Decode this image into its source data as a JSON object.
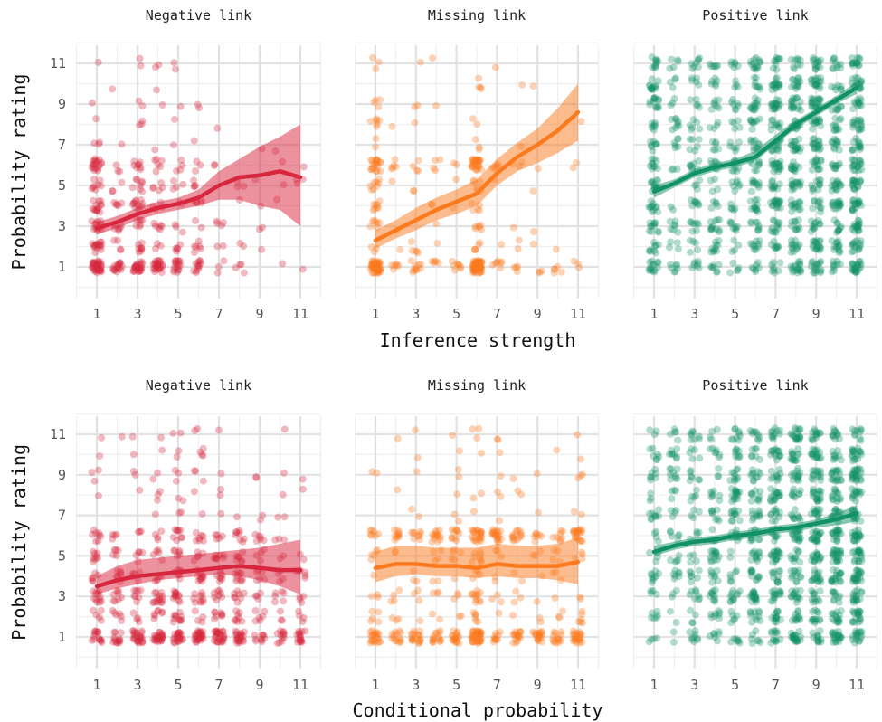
{
  "colors": {
    "negative": "#d7263d",
    "missing": "#fc7a1e",
    "positive": "#119166"
  },
  "chart_data": [
    {
      "type": "scatter",
      "title": "",
      "xlabel": "Inference strength",
      "ylabel": "Probability rating",
      "xlim": [
        0,
        12
      ],
      "ylim": [
        0,
        12.6
      ],
      "xticks": [
        "1",
        "3",
        "5",
        "7",
        "9",
        "11"
      ],
      "yticks": [
        "1",
        "3",
        "5",
        "7",
        "9",
        "11"
      ],
      "grid": true,
      "panels": [
        {
          "strip": "Negative link",
          "color_key": "negative",
          "trend_x": [
            1,
            2,
            3,
            4,
            5,
            6,
            7,
            8,
            9,
            10,
            11
          ],
          "trend_y": [
            2.9,
            3.2,
            3.6,
            3.9,
            4.1,
            4.4,
            5.0,
            5.4,
            5.5,
            5.7,
            5.4
          ],
          "band_low": [
            2.6,
            2.9,
            3.3,
            3.6,
            3.8,
            4.0,
            4.3,
            4.3,
            4.0,
            3.8,
            3.0
          ],
          "band_high": [
            3.2,
            3.5,
            3.9,
            4.2,
            4.4,
            4.8,
            5.7,
            6.3,
            6.9,
            7.4,
            8.0
          ],
          "density": [
            110,
            40,
            75,
            55,
            40,
            35,
            12,
            10,
            6,
            5,
            5
          ],
          "ymode": "neg"
        },
        {
          "strip": "Missing link",
          "color_key": "missing",
          "trend_x": [
            1,
            2,
            3,
            4,
            5,
            6,
            7,
            8,
            9,
            10,
            11
          ],
          "trend_y": [
            2.3,
            2.8,
            3.3,
            3.8,
            4.2,
            4.6,
            5.6,
            6.4,
            7.0,
            7.7,
            8.6
          ],
          "band_low": [
            1.9,
            2.4,
            2.8,
            3.3,
            3.6,
            4.0,
            5.0,
            5.7,
            6.1,
            6.6,
            7.2
          ],
          "band_high": [
            2.8,
            3.3,
            3.9,
            4.4,
            4.8,
            5.3,
            6.3,
            7.1,
            7.8,
            8.8,
            10.0
          ],
          "density": [
            110,
            15,
            25,
            15,
            12,
            110,
            15,
            12,
            8,
            6,
            6
          ],
          "ymode": "mis"
        },
        {
          "strip": "Positive link",
          "color_key": "positive",
          "trend_x": [
            1,
            2,
            3,
            4,
            5,
            6,
            7,
            8,
            9,
            10,
            11
          ],
          "trend_y": [
            4.7,
            5.1,
            5.6,
            5.9,
            6.1,
            6.4,
            7.2,
            8.0,
            8.6,
            9.2,
            9.8
          ],
          "band_low": [
            4.4,
            4.9,
            5.4,
            5.7,
            5.9,
            6.2,
            7.0,
            7.8,
            8.4,
            9.0,
            9.5
          ],
          "band_high": [
            5.0,
            5.3,
            5.8,
            6.1,
            6.3,
            6.7,
            7.5,
            8.2,
            8.8,
            9.4,
            10.1
          ],
          "density": [
            120,
            50,
            70,
            75,
            65,
            110,
            140,
            150,
            160,
            120,
            180
          ],
          "ymode": "pos"
        }
      ]
    },
    {
      "type": "scatter",
      "title": "",
      "xlabel": "Conditional probability",
      "ylabel": "Probability rating",
      "xlim": [
        0,
        12
      ],
      "ylim": [
        0,
        12.6
      ],
      "xticks": [
        "1",
        "3",
        "5",
        "7",
        "9",
        "11"
      ],
      "yticks": [
        "1",
        "3",
        "5",
        "7",
        "9",
        "11"
      ],
      "grid": true,
      "panels": [
        {
          "strip": "Negative link",
          "color_key": "negative",
          "trend_x": [
            1,
            2,
            3,
            4,
            5,
            6,
            7,
            8,
            9,
            10,
            11
          ],
          "trend_y": [
            3.5,
            3.8,
            4.0,
            4.1,
            4.2,
            4.3,
            4.4,
            4.5,
            4.4,
            4.3,
            4.3
          ],
          "band_low": [
            3.1,
            3.4,
            3.6,
            3.8,
            3.9,
            4.0,
            4.1,
            4.0,
            3.8,
            3.5,
            3.1
          ],
          "band_high": [
            4.0,
            4.5,
            4.8,
            4.9,
            5.0,
            5.1,
            5.2,
            5.3,
            5.4,
            5.6,
            5.8
          ],
          "density": [
            60,
            45,
            55,
            70,
            80,
            75,
            70,
            65,
            40,
            35,
            35
          ],
          "ymode": "neg"
        },
        {
          "strip": "Missing link",
          "color_key": "missing",
          "trend_x": [
            1,
            2,
            3,
            4,
            5,
            6,
            7,
            8,
            9,
            10,
            11
          ],
          "trend_y": [
            4.4,
            4.6,
            4.6,
            4.5,
            4.5,
            4.4,
            4.6,
            4.5,
            4.5,
            4.5,
            4.7
          ],
          "band_low": [
            3.7,
            4.0,
            4.1,
            4.0,
            4.0,
            3.9,
            4.0,
            3.9,
            3.9,
            3.8,
            3.6
          ],
          "band_high": [
            5.2,
            5.5,
            5.5,
            5.4,
            5.4,
            5.4,
            5.6,
            5.5,
            5.5,
            5.6,
            5.9
          ],
          "density": [
            45,
            35,
            40,
            40,
            45,
            100,
            45,
            40,
            35,
            35,
            60
          ],
          "ymode": "mis2"
        },
        {
          "strip": "Positive link",
          "color_key": "positive",
          "trend_x": [
            1,
            2,
            3,
            4,
            5,
            6,
            7,
            8,
            9,
            10,
            11
          ],
          "trend_y": [
            5.2,
            5.5,
            5.7,
            5.8,
            6.0,
            6.1,
            6.3,
            6.4,
            6.6,
            6.8,
            7.1
          ],
          "band_low": [
            5.0,
            5.3,
            5.5,
            5.6,
            5.8,
            5.9,
            6.1,
            6.2,
            6.4,
            6.5,
            6.7
          ],
          "band_high": [
            5.5,
            5.7,
            5.9,
            6.0,
            6.2,
            6.3,
            6.5,
            6.6,
            6.8,
            7.1,
            7.5
          ],
          "density": [
            60,
            55,
            65,
            80,
            95,
            115,
            140,
            150,
            160,
            170,
            190
          ],
          "ymode": "pos"
        }
      ]
    }
  ]
}
